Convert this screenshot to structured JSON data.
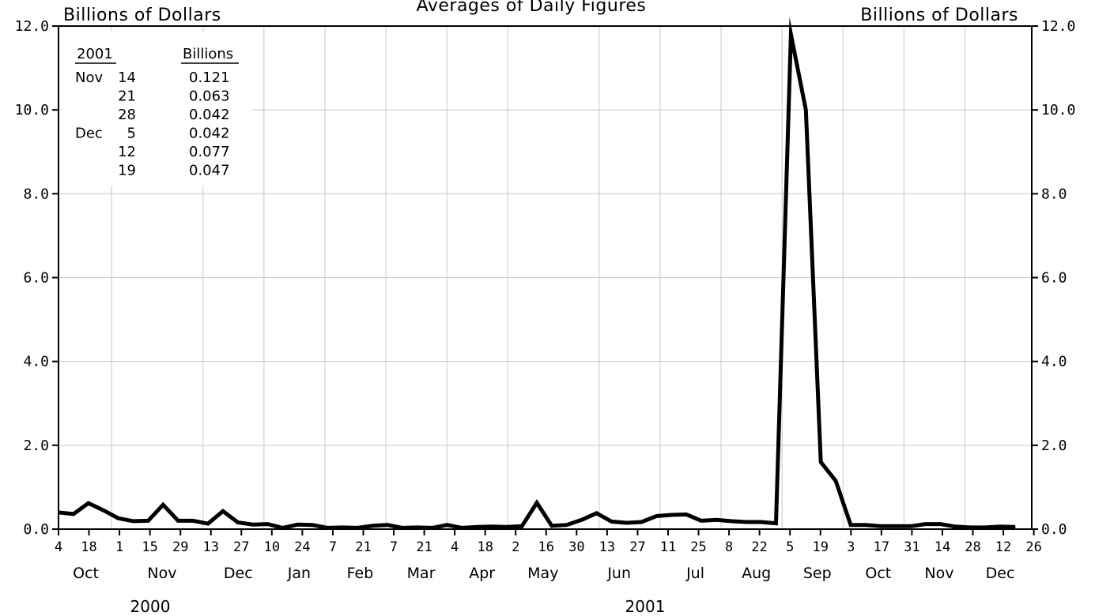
{
  "chart_data": {
    "type": "line",
    "title": "Averages of Daily Figures",
    "ylabel_left": "Billions of Dollars",
    "ylabel_right": "Billions of Dollars",
    "ylim": [
      0,
      12
    ],
    "y_ticks": [
      "0.0",
      "2.0",
      "4.0",
      "6.0",
      "8.0",
      "10.0",
      "12.0"
    ],
    "grid": true,
    "x_ticks": [
      "4",
      "18",
      "1",
      "15",
      "29",
      "13",
      "27",
      "10",
      "24",
      "7",
      "21",
      "7",
      "21",
      "4",
      "18",
      "2",
      "16",
      "30",
      "13",
      "27",
      "11",
      "25",
      "8",
      "22",
      "5",
      "19",
      "3",
      "17",
      "31",
      "14",
      "28",
      "12",
      "26"
    ],
    "months": [
      "Oct",
      "Nov",
      "Dec",
      "Jan",
      "Feb",
      "Mar",
      "Apr",
      "May",
      "Jun",
      "Jul",
      "Aug",
      "Sep",
      "Oct",
      "Nov",
      "Dec"
    ],
    "years": [
      "2000",
      "2001"
    ],
    "series": [
      {
        "values": [
          0.4,
          0.36,
          0.62,
          0.45,
          0.26,
          0.19,
          0.2,
          0.58,
          0.2,
          0.2,
          0.13,
          0.43,
          0.16,
          0.11,
          0.12,
          0.03,
          0.11,
          0.1,
          0.03,
          0.04,
          0.03,
          0.08,
          0.1,
          0.03,
          0.04,
          0.03,
          0.1,
          0.03,
          0.05,
          0.06,
          0.05,
          0.07,
          0.63,
          0.08,
          0.1,
          0.22,
          0.38,
          0.18,
          0.15,
          0.17,
          0.31,
          0.34,
          0.35,
          0.2,
          0.22,
          0.19,
          0.17,
          0.17,
          0.14,
          11.8,
          10.0,
          1.6,
          1.15,
          0.1,
          0.1,
          0.07,
          0.07,
          0.07,
          0.12,
          0.12,
          0.06,
          0.04,
          0.04,
          0.06,
          0.05
        ]
      }
    ],
    "inset_table": {
      "headers": [
        "2001",
        "Billions"
      ],
      "rows": [
        {
          "month": "Nov",
          "day": "14",
          "value": "0.121"
        },
        {
          "month": "",
          "day": "21",
          "value": "0.063"
        },
        {
          "month": "",
          "day": "28",
          "value": "0.042"
        },
        {
          "month": "Dec",
          "day": "5",
          "value": "0.042"
        },
        {
          "month": "",
          "day": "12",
          "value": "0.077"
        },
        {
          "month": "",
          "day": "19",
          "value": "0.047"
        }
      ]
    }
  }
}
